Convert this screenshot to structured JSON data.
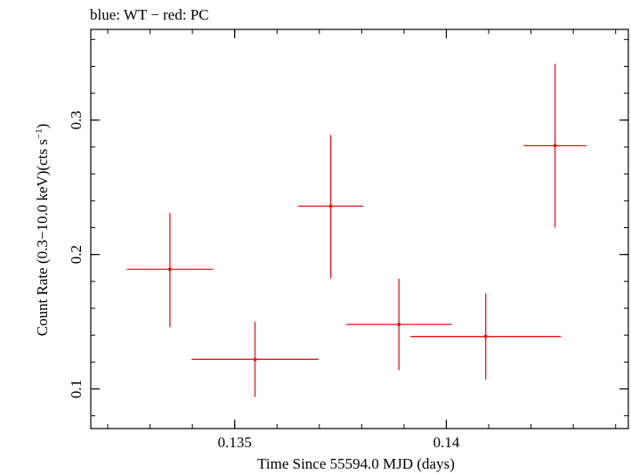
{
  "chart_data": {
    "type": "scatter",
    "title": "blue: WT − red: PC",
    "xlabel": "Time Since 55594.0 MJD (days)",
    "ylabel_main": "Count Rate (0.3−10.0 keV)(cts s",
    "ylabel_sup": "−1",
    "ylabel_end": ")",
    "xlim": [
      0.1316,
      0.1443
    ],
    "ylim": [
      0.0705,
      0.3675
    ],
    "xticks": [
      0.135,
      0.14
    ],
    "xtick_labels": [
      "0.135",
      "0.14"
    ],
    "yticks": [
      0.1,
      0.2,
      0.3
    ],
    "ytick_labels": [
      "0.1",
      "0.2",
      "0.3"
    ],
    "x_minor_step": 0.001,
    "y_minor_step": 0.02,
    "series": [
      {
        "name": "PC",
        "color": "#e8141c",
        "points": [
          {
            "x": 0.13347,
            "y": 0.189,
            "xerr": 0.00102,
            "yerr_low": 0.043,
            "yerr_high": 0.042
          },
          {
            "x": 0.13548,
            "y": 0.122,
            "xerr": 0.0015,
            "yerr_low": 0.028,
            "yerr_high": 0.028
          },
          {
            "x": 0.13727,
            "y": 0.236,
            "xerr": 0.00077,
            "yerr_low": 0.054,
            "yerr_high": 0.053
          },
          {
            "x": 0.13888,
            "y": 0.148,
            "xerr": 0.00125,
            "yerr_low": 0.034,
            "yerr_high": 0.034
          },
          {
            "x": 0.14093,
            "y": 0.139,
            "xerr": 0.00178,
            "yerr_low": 0.032,
            "yerr_high": 0.032
          },
          {
            "x": 0.14257,
            "y": 0.281,
            "xerr": 0.00074,
            "yerr_low": 0.061,
            "yerr_high": 0.061
          }
        ]
      }
    ]
  }
}
